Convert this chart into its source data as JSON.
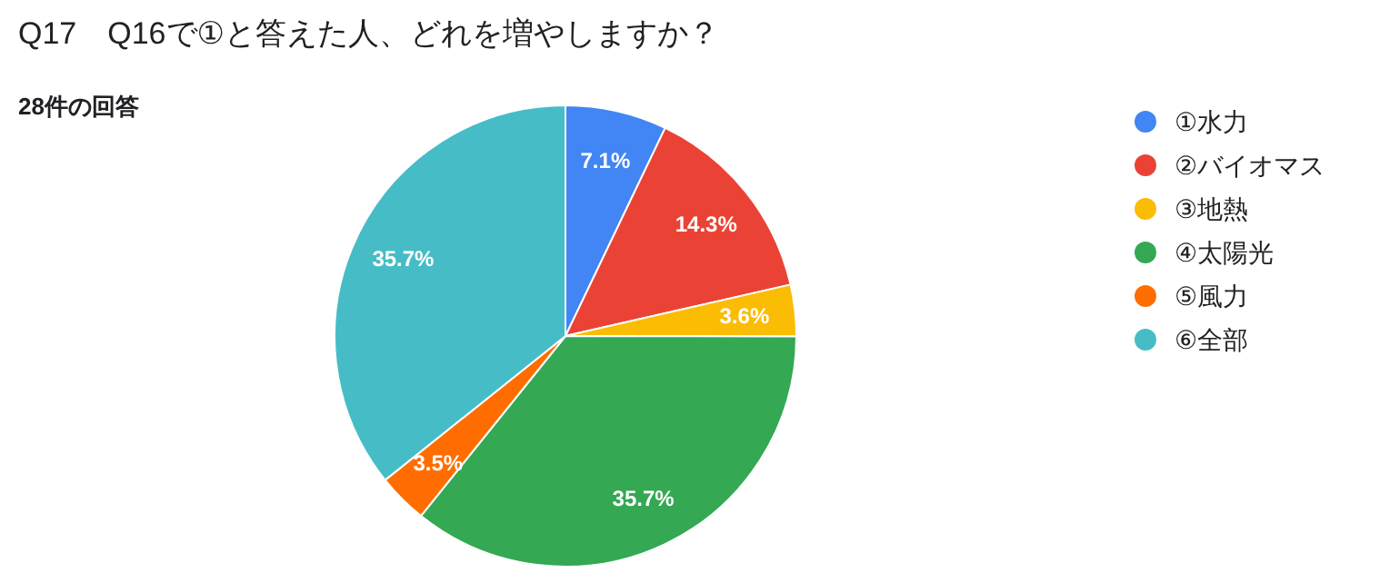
{
  "chart_data": {
    "type": "pie",
    "title": "Q17　Q16で①と答えた人、どれを増やしますか？",
    "subtitle": "28件の回答",
    "categories": [
      "①水力",
      "②バイオマス",
      "③地熱",
      "④太陽光",
      "⑤風力",
      "⑥全部"
    ],
    "values": [
      7.1,
      14.3,
      3.6,
      35.7,
      3.5,
      35.7
    ],
    "colors": [
      "#4285f4",
      "#ea4335",
      "#fbbc04",
      "#34a853",
      "#ff6d01",
      "#46bdc6"
    ],
    "value_labels": [
      "7.1%",
      "14.3%",
      "3.6%",
      "35.7%",
      "3.5%",
      "35.7%"
    ],
    "legend": "right"
  }
}
